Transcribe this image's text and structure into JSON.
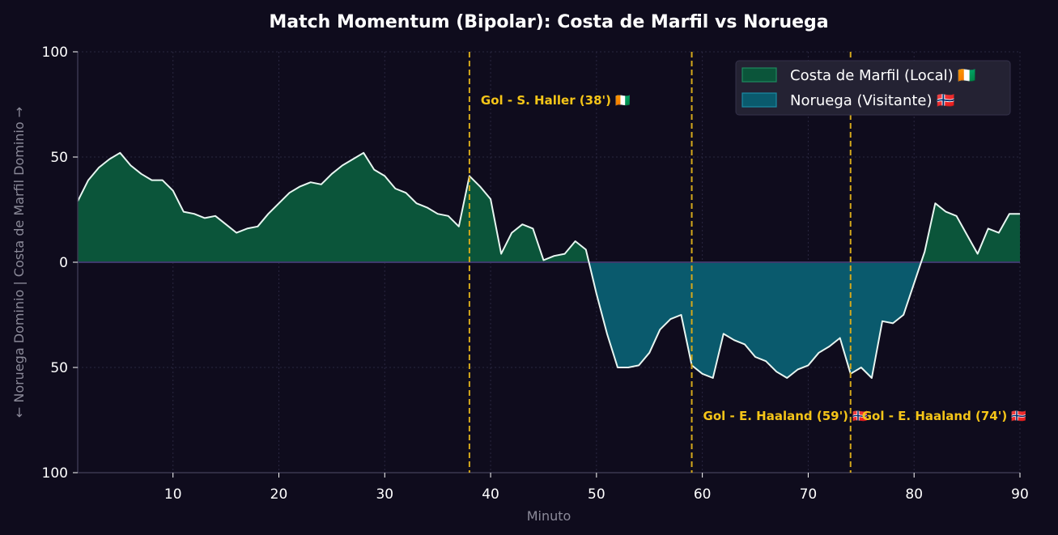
{
  "chart_data": {
    "type": "area",
    "title": "Match Momentum (Bipolar): Costa de Marfil vs Noruega",
    "xlabel": "Minuto",
    "ylabel": "← Noruega Dominio | Costa de Marfil Dominio →",
    "xlim": [
      1,
      90
    ],
    "ylim": [
      -100,
      100
    ],
    "xticks": [
      10,
      20,
      30,
      40,
      50,
      60,
      70,
      80,
      90
    ],
    "yticks": [
      {
        "value": 100,
        "label": "100"
      },
      {
        "value": 50,
        "label": "50"
      },
      {
        "value": 0,
        "label": "0"
      },
      {
        "value": -50,
        "label": "50"
      },
      {
        "value": -100,
        "label": "100"
      }
    ],
    "grid": true,
    "legend_position": "top-right",
    "colors": {
      "background": "#0f0c1d",
      "home_fill": "#0b553a",
      "away_fill": "#0a5a6d",
      "line": "#e8f6f1",
      "goal_line": "#d4a81b",
      "goal_text": "#f5c518",
      "grid": "#2a2740",
      "axis": "#3a3650"
    },
    "series": [
      {
        "name": "Costa de Marfil (Local) 🇨🇮",
        "color": "#0b553a",
        "role": "positive"
      },
      {
        "name": "Noruega (Visitante) 🇳🇴",
        "color": "#0a5a6d",
        "role": "negative"
      }
    ],
    "x": [
      1,
      2,
      3,
      4,
      5,
      6,
      7,
      8,
      9,
      10,
      11,
      12,
      13,
      14,
      15,
      16,
      17,
      18,
      19,
      20,
      21,
      22,
      23,
      24,
      25,
      26,
      27,
      28,
      29,
      30,
      31,
      32,
      33,
      34,
      35,
      36,
      37,
      38,
      39,
      40,
      41,
      42,
      43,
      44,
      45,
      46,
      47,
      48,
      49,
      50,
      51,
      52,
      53,
      54,
      55,
      56,
      57,
      58,
      59,
      60,
      61,
      62,
      63,
      64,
      65,
      66,
      67,
      68,
      69,
      70,
      71,
      72,
      73,
      74,
      75,
      76,
      77,
      78,
      79,
      80,
      81,
      82,
      83,
      84,
      85,
      86,
      87,
      88,
      89,
      90
    ],
    "values": [
      29,
      39,
      45,
      49,
      52,
      46,
      42,
      39,
      39,
      34,
      24,
      23,
      21,
      22,
      18,
      14,
      16,
      17,
      23,
      28,
      33,
      36,
      38,
      37,
      42,
      46,
      49,
      52,
      44,
      41,
      35,
      33,
      28,
      26,
      23,
      22,
      17,
      41,
      36,
      30,
      4,
      14,
      18,
      16,
      1,
      3,
      4,
      10,
      6,
      -15,
      -34,
      -50,
      -50,
      -49,
      -43,
      -32,
      -27,
      -25,
      -49,
      -53,
      -55,
      -34,
      -37,
      -39,
      -45,
      -47,
      -52,
      -55,
      -51,
      -49,
      -43,
      -40,
      -36,
      -53,
      -50,
      -55,
      -28,
      -29,
      -25,
      -10,
      5,
      28,
      24,
      22,
      13,
      4,
      16,
      14,
      23,
      23
    ],
    "goals": [
      {
        "minute": 38,
        "label": "Gol - S. Haller (38') 🇨🇮",
        "label_y": 77
      },
      {
        "minute": 59,
        "label": "Gol - E. Haaland (59') 🇳🇴",
        "label_y": -73
      },
      {
        "minute": 74,
        "label": "Gol - E. Haaland (74') 🇳🇴",
        "label_y": -73
      }
    ]
  }
}
